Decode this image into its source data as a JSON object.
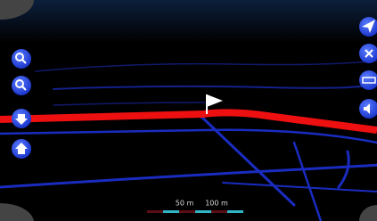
{
  "scale_bar": {
    "labels": [
      "50 m",
      "100 m"
    ]
  }
}
